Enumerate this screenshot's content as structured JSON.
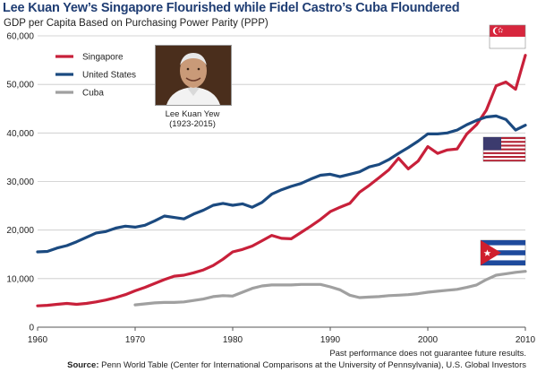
{
  "header": {
    "title": "Lee Kuan Yew’s Singapore Flourished while Fidel Castro’s Cuba Floundered",
    "subtitle": "GDP per Capita Based on Purchasing Power Parity (PPP)"
  },
  "photo": {
    "caption_name": "Lee Kuan Yew",
    "caption_years": "(1923-2015)"
  },
  "footer": {
    "disclaimer": "Past performance does not guarantee future results.",
    "source_label": "Source:",
    "source_text": "Penn World Table (Center for International Comparisons at the University of Pennsylvania), U.S. Global Investors"
  },
  "colors": {
    "singapore": "#c8203a",
    "united_states": "#1b4a80",
    "cuba": "#a0a0a0",
    "title": "#1f3d73",
    "grid": "#c8c8c8"
  },
  "chart_data": {
    "type": "line",
    "title": "Lee Kuan Yew’s Singapore Flourished while Fidel Castro’s Cuba Floundered",
    "subtitle": "GDP per Capita Based on Purchasing Power Parity (PPP)",
    "xlabel": "",
    "ylabel": "",
    "xlim": [
      1960,
      2010
    ],
    "ylim": [
      0,
      60000
    ],
    "x_ticks": [
      1960,
      1970,
      1980,
      1990,
      2000,
      2010
    ],
    "y_ticks": [
      0,
      10000,
      20000,
      30000,
      40000,
      50000,
      60000
    ],
    "x_tick_labels": [
      "1960",
      "1970",
      "1980",
      "1990",
      "2000",
      "2010"
    ],
    "y_tick_labels": [
      "0",
      "10,000",
      "20,000",
      "30,000",
      "40,000",
      "50,000",
      "60,000"
    ],
    "grid": "horizontal",
    "legend": "top-left",
    "series": [
      {
        "name": "Singapore",
        "color": "#c8203a",
        "x": [
          1960,
          1961,
          1962,
          1963,
          1964,
          1965,
          1966,
          1967,
          1968,
          1969,
          1970,
          1971,
          1972,
          1973,
          1974,
          1975,
          1976,
          1977,
          1978,
          1979,
          1980,
          1981,
          1982,
          1983,
          1984,
          1985,
          1986,
          1987,
          1988,
          1989,
          1990,
          1991,
          1992,
          1993,
          1994,
          1995,
          1996,
          1997,
          1998,
          1999,
          2000,
          2001,
          2002,
          2003,
          2004,
          2005,
          2006,
          2007,
          2008,
          2009,
          2010
        ],
        "values": [
          4400,
          4500,
          4700,
          4900,
          4700,
          4900,
          5200,
          5600,
          6100,
          6700,
          7500,
          8200,
          9000,
          9800,
          10500,
          10700,
          11200,
          11800,
          12700,
          14000,
          15500,
          16000,
          16700,
          17800,
          18900,
          18300,
          18200,
          19500,
          20800,
          22200,
          23800,
          24700,
          25500,
          27800,
          29200,
          30800,
          32400,
          34800,
          32600,
          34200,
          37200,
          35800,
          36500,
          36700,
          39800,
          41700,
          44700,
          49700,
          50500,
          49000,
          56000
        ]
      },
      {
        "name": "United States",
        "color": "#1b4a80",
        "x": [
          1960,
          1961,
          1962,
          1963,
          1964,
          1965,
          1966,
          1967,
          1968,
          1969,
          1970,
          1971,
          1972,
          1973,
          1974,
          1975,
          1976,
          1977,
          1978,
          1979,
          1980,
          1981,
          1982,
          1983,
          1984,
          1985,
          1986,
          1987,
          1988,
          1989,
          1990,
          1991,
          1992,
          1993,
          1994,
          1995,
          1996,
          1997,
          1998,
          1999,
          2000,
          2001,
          2002,
          2003,
          2004,
          2005,
          2006,
          2007,
          2008,
          2009,
          2010
        ],
        "values": [
          15500,
          15600,
          16300,
          16800,
          17600,
          18500,
          19400,
          19700,
          20400,
          20800,
          20600,
          21000,
          21900,
          22900,
          22600,
          22300,
          23300,
          24100,
          25100,
          25500,
          25100,
          25400,
          24700,
          25700,
          27400,
          28300,
          29000,
          29600,
          30500,
          31300,
          31500,
          31000,
          31500,
          32000,
          33000,
          33500,
          34500,
          35800,
          37000,
          38300,
          39800,
          39800,
          40000,
          40600,
          41700,
          42600,
          43300,
          43500,
          42800,
          40600,
          41600
        ]
      },
      {
        "name": "Cuba",
        "color": "#a0a0a0",
        "x": [
          1970,
          1971,
          1972,
          1973,
          1974,
          1975,
          1976,
          1977,
          1978,
          1979,
          1980,
          1981,
          1982,
          1983,
          1984,
          1985,
          1986,
          1987,
          1988,
          1989,
          1990,
          1991,
          1992,
          1993,
          1994,
          1995,
          1996,
          1997,
          1998,
          1999,
          2000,
          2001,
          2002,
          2003,
          2004,
          2005,
          2006,
          2007,
          2008,
          2009,
          2010
        ],
        "values": [
          4600,
          4800,
          5000,
          5100,
          5100,
          5200,
          5500,
          5800,
          6300,
          6500,
          6400,
          7200,
          8000,
          8500,
          8700,
          8700,
          8700,
          8800,
          8800,
          8800,
          8300,
          7700,
          6600,
          6100,
          6200,
          6300,
          6500,
          6600,
          6700,
          6900,
          7200,
          7400,
          7600,
          7800,
          8200,
          8700,
          9800,
          10700,
          11000,
          11300,
          11500
        ]
      }
    ]
  }
}
